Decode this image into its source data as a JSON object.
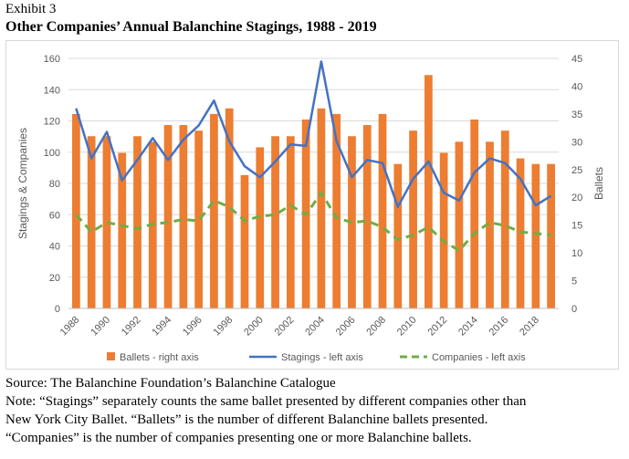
{
  "header": {
    "exhibit": "Exhibit 3",
    "title": "Other Companies’ Annual Balanchine Stagings, 1988 - 2019"
  },
  "notes": {
    "source": "Source: The Balanchine Foundation’s Balanchine Catalogue",
    "note_line1": "Note: “Stagings” separately counts the same ballet presented by different companies other than",
    "note_line2": "New York City Ballet. “Ballets” is the number of different Balanchine ballets presented.",
    "note_line3": "“Companies” is the number of companies presenting one or more Balanchine ballets."
  },
  "colors": {
    "ballets": "#ED7D31",
    "stagings": "#4472C4",
    "companies": "#70AD47",
    "grid": "#d9d9d9",
    "text": "#595959"
  },
  "chart_data": {
    "type": "bar",
    "x": [
      1988,
      1989,
      1990,
      1991,
      1992,
      1993,
      1994,
      1995,
      1996,
      1997,
      1998,
      1999,
      2000,
      2001,
      2002,
      2003,
      2004,
      2005,
      2006,
      2007,
      2008,
      2009,
      2010,
      2011,
      2012,
      2013,
      2014,
      2015,
      2016,
      2017,
      2018,
      2019
    ],
    "x_tick_labels": [
      "1988",
      "",
      "1990",
      "",
      "1992",
      "",
      "1994",
      "",
      "1996",
      "",
      "1998",
      "",
      "2000",
      "",
      "2002",
      "",
      "2004",
      "",
      "2006",
      "",
      "2008",
      "",
      "2010",
      "",
      "2012",
      "",
      "2014",
      "",
      "2016",
      "",
      "2018",
      ""
    ],
    "ylabel": "Stagings & Companies",
    "y2label": "Ballets",
    "ylim": [
      0,
      160
    ],
    "y_ticks": [
      0,
      20,
      40,
      60,
      80,
      100,
      120,
      140,
      160
    ],
    "y2lim": [
      0,
      45
    ],
    "y2_ticks": [
      0,
      5,
      10,
      15,
      20,
      25,
      30,
      35,
      40,
      45
    ],
    "grid": true,
    "legend_position": "bottom",
    "series": [
      {
        "name": "Ballets - right axis",
        "type": "bar",
        "axis": "right",
        "values": [
          35,
          31,
          31,
          28,
          31,
          30,
          33,
          33,
          32,
          35,
          36,
          24,
          29,
          31,
          31,
          34,
          36,
          35,
          31,
          33,
          35,
          26,
          32,
          42,
          28,
          30,
          34,
          30,
          32,
          27,
          26,
          26
        ]
      },
      {
        "name": "Stagings - left axis",
        "type": "line",
        "axis": "left",
        "values": [
          128,
          96,
          113,
          82,
          95,
          109,
          95,
          108,
          117,
          133,
          107,
          91,
          84,
          94,
          105,
          104,
          158,
          107,
          84,
          95,
          93,
          65,
          83,
          94,
          74,
          69,
          87,
          96,
          93,
          83,
          66,
          72
        ]
      },
      {
        "name": "Companies - left axis",
        "type": "line",
        "dashed": true,
        "axis": "left",
        "values": [
          60,
          49,
          55,
          53,
          51,
          54,
          55,
          57,
          56,
          69,
          65,
          56,
          59,
          60,
          66,
          60,
          74,
          58,
          55,
          56,
          52,
          44,
          47,
          52,
          43,
          37,
          48,
          55,
          53,
          49,
          48,
          47
        ]
      }
    ]
  }
}
